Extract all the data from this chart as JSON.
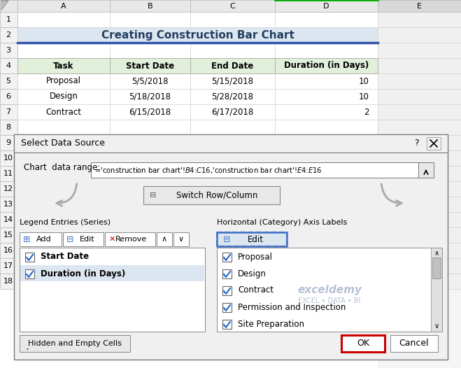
{
  "title": "Creating Construction Bar Chart",
  "spreadsheet_bg": "#ffffff",
  "header_bg": "#e2efda",
  "title_bg": "#dce6f1",
  "col_headers": [
    "Task",
    "Start Date",
    "End Date",
    "Duration (in Days)"
  ],
  "rows": [
    [
      "Proposal",
      "5/5/2018",
      "5/15/2018",
      "10"
    ],
    [
      "Design",
      "5/18/2018",
      "5/28/2018",
      "10"
    ],
    [
      "Contract",
      "6/15/2018",
      "6/17/2018",
      "2"
    ]
  ],
  "col_letters": [
    "A",
    "B",
    "C",
    "D",
    "E"
  ],
  "row_numbers": [
    "1",
    "2",
    "3",
    "4",
    "5",
    "6",
    "7",
    "8",
    "9",
    "10",
    "11",
    "12",
    "13",
    "14",
    "15",
    "16",
    "17",
    "18"
  ],
  "dialog_title": "Select Data Source",
  "chart_data_range_label": "Chart  data range:",
  "chart_data_range_value": "='construction bar chart'!$B$4:$C$16,'construction bar chart'!$E$4:$E$16",
  "switch_btn": "  Switch Row/Column",
  "legend_label": "Legend Entries (Series)",
  "axis_label": "Horizontal (Category) Axis Labels",
  "legend_items": [
    "Start Date",
    "Duration (in Days)"
  ],
  "axis_items": [
    "Proposal",
    "Design",
    "Contract",
    "Permission and Inspection",
    "Site Preparation"
  ],
  "hidden_btn": "Hidden and Empty Cells",
  "ok_btn": "OK",
  "cancel_btn": "Cancel",
  "edit_btn": "Edit",
  "add_btn": "Add",
  "remove_btn": "Remove",
  "watermark_line1": "exceldemy",
  "watermark_line2": "EXCEL • DATA • BI",
  "dialog_bg": "#f0f0f0",
  "cell_border": "#d0d0d0",
  "header_border": "#b0b0b0",
  "blue_title_border": "#3355aa",
  "title_text_color": "#243f60",
  "green_header_bg": "#e2efda",
  "light_blue_title_bg": "#dce6f1",
  "col_header_bg": "#f2f2f2",
  "row_num_bg": "#f2f2f2",
  "legend_item1_bg": "#ffffff",
  "legend_item2_bg": "#dce6f1",
  "edit_btn_border": "#4472c4",
  "edit_btn_bg": "#dce6f1",
  "scrollbar_bg": "#c0c0c0",
  "ok_border_color": "#cc0000",
  "wm_color": "#8899bb"
}
